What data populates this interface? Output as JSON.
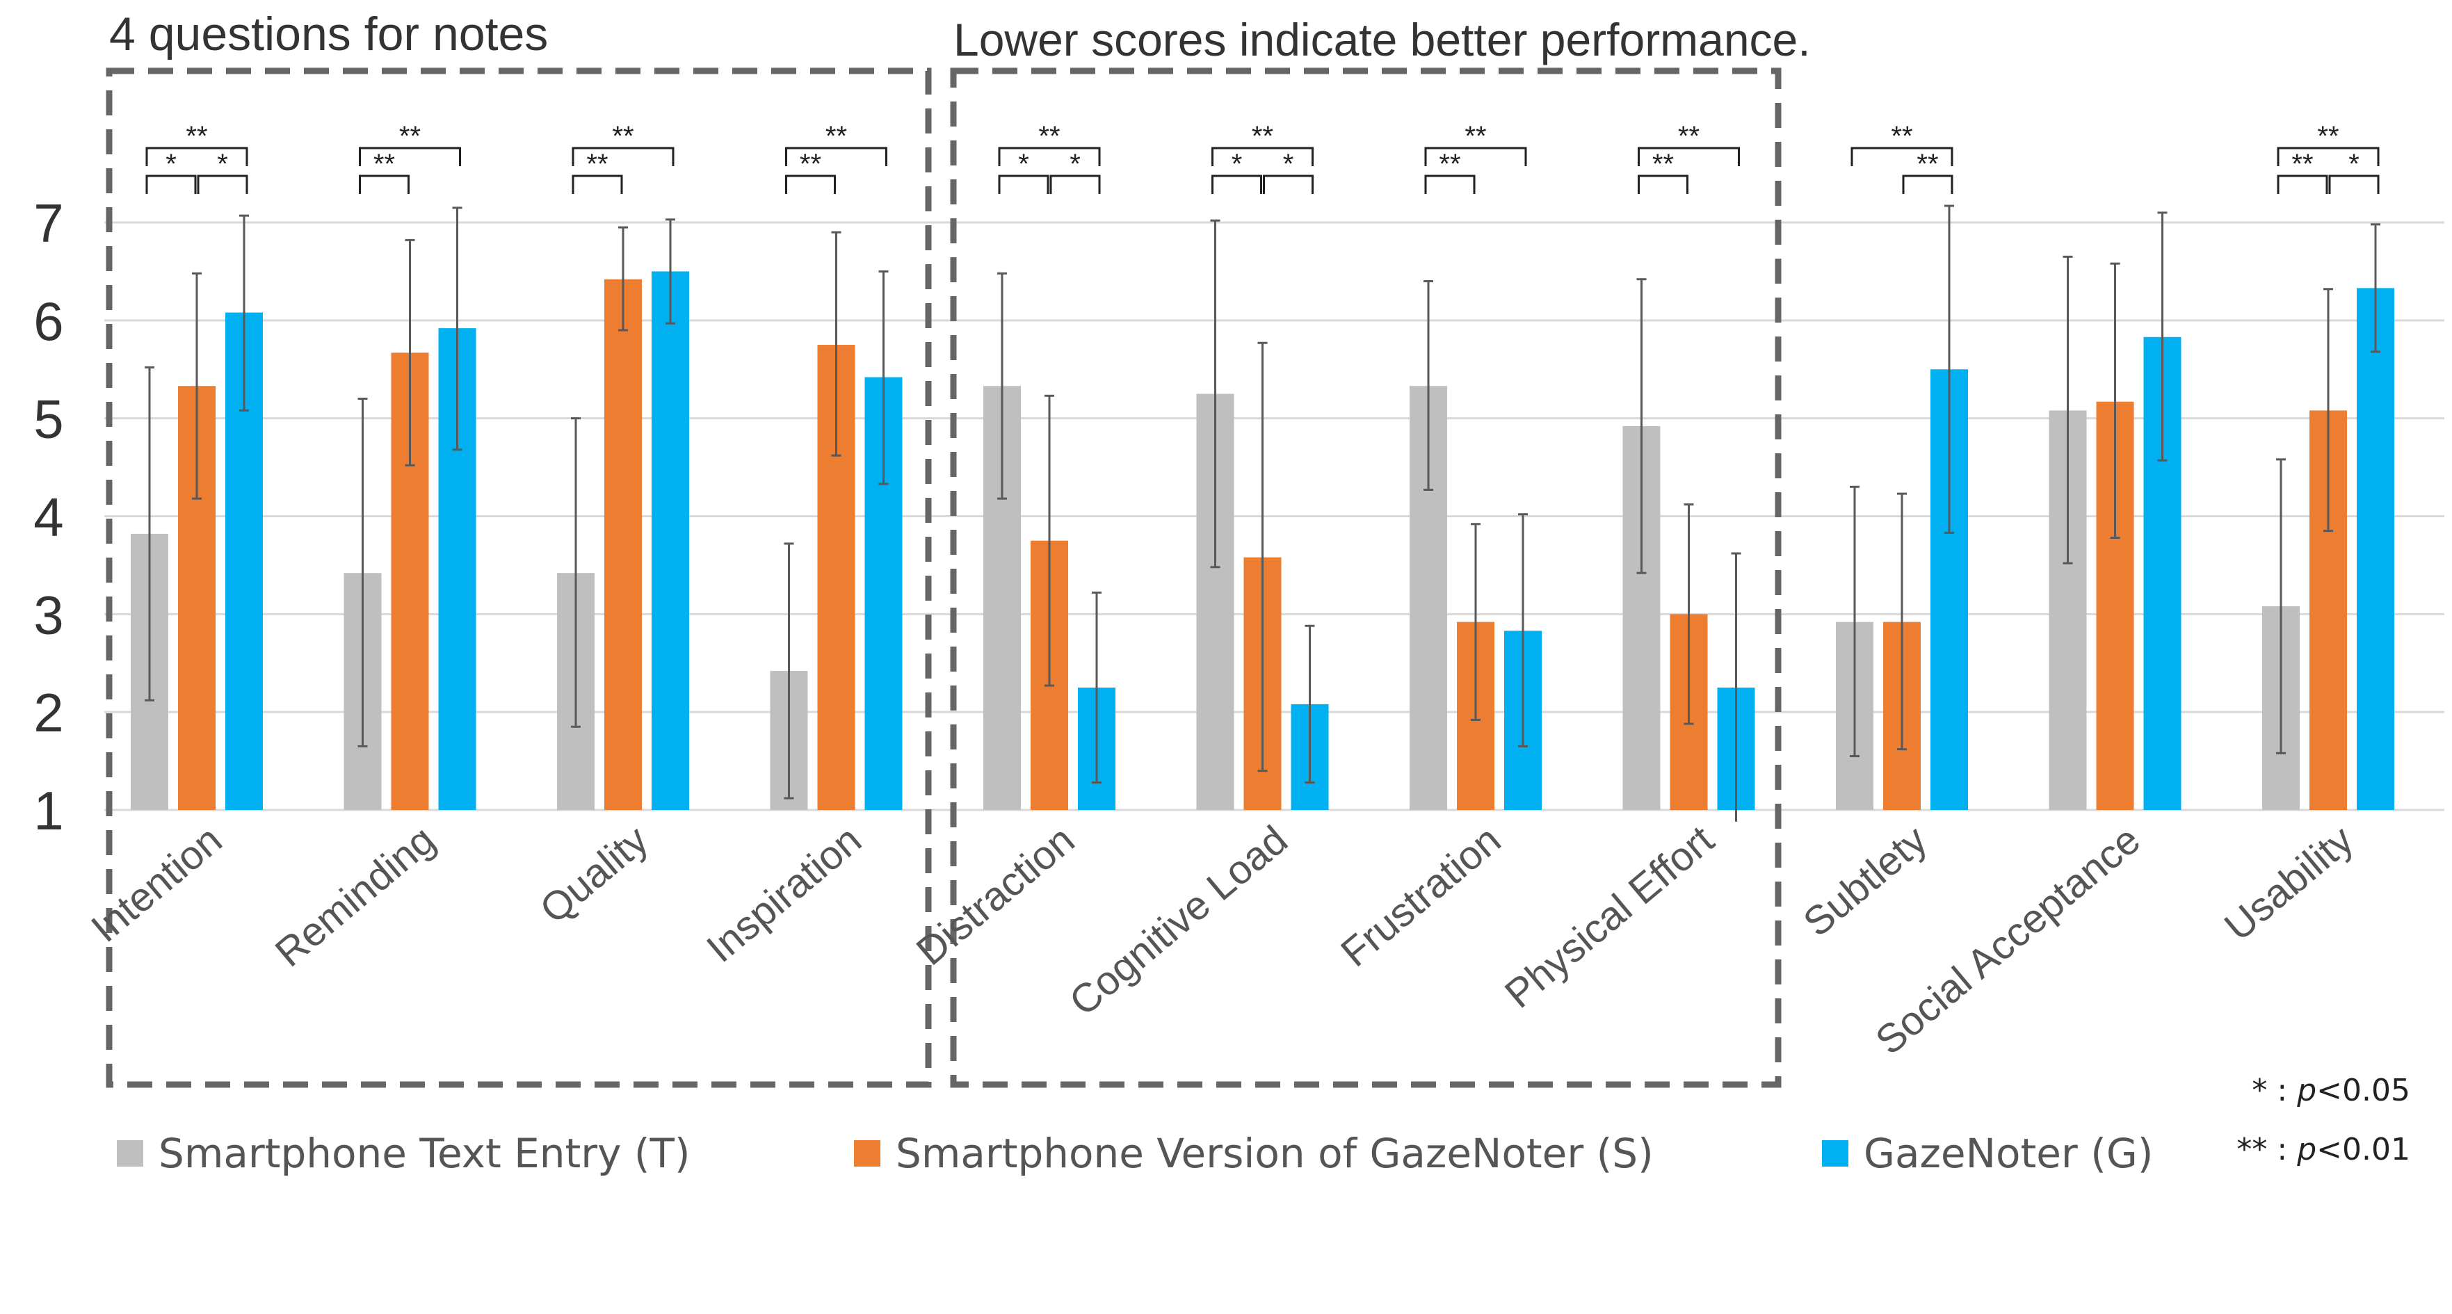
{
  "chart_data": {
    "type": "bar",
    "title": "",
    "xlabel": "",
    "ylabel": "",
    "ylim": [
      1,
      7
    ],
    "yticks": [
      1,
      2,
      3,
      4,
      5,
      6,
      7
    ],
    "grid": true,
    "categories": [
      "Intention",
      "Reminding",
      "Quality",
      "Inspiration",
      "Distraction",
      "Cognitive Load",
      "Frustration",
      "Physical Effort",
      "Subtlety",
      "Social Acceptance",
      "Usability"
    ],
    "series": [
      {
        "name": "Smartphone Text Entry (T)",
        "color": "#bfbfbf",
        "values": [
          3.82,
          3.42,
          3.42,
          2.42,
          5.33,
          5.25,
          5.33,
          4.92,
          2.92,
          5.08,
          3.08
        ],
        "err_low": [
          2.12,
          1.65,
          1.85,
          1.12,
          4.18,
          3.48,
          4.27,
          3.42,
          1.55,
          3.52,
          1.58
        ],
        "err_high": [
          5.52,
          5.2,
          5.0,
          3.72,
          6.48,
          7.02,
          6.4,
          6.42,
          4.3,
          6.65,
          4.58
        ]
      },
      {
        "name": "Smartphone Version of GazeNoter (S)",
        "color": "#ed7d31",
        "values": [
          5.33,
          5.67,
          6.42,
          5.75,
          3.75,
          3.58,
          2.92,
          3.0,
          2.92,
          5.17,
          5.08
        ],
        "err_low": [
          4.18,
          4.52,
          5.9,
          4.62,
          2.27,
          1.4,
          1.92,
          1.88,
          1.62,
          3.78,
          3.85
        ],
        "err_high": [
          6.48,
          6.82,
          6.95,
          6.9,
          5.23,
          5.77,
          3.92,
          4.12,
          4.23,
          6.58,
          6.32
        ]
      },
      {
        "name": "GazeNoter (G)",
        "color": "#00b0f0",
        "values": [
          6.08,
          5.92,
          6.5,
          5.42,
          2.25,
          2.08,
          2.83,
          2.25,
          5.5,
          5.83,
          6.33
        ],
        "err_low": [
          5.08,
          4.68,
          5.97,
          4.33,
          1.28,
          1.28,
          1.65,
          0.88,
          3.83,
          4.57,
          5.68
        ],
        "err_high": [
          7.07,
          7.15,
          7.03,
          6.5,
          3.22,
          2.88,
          4.02,
          3.62,
          7.17,
          7.1,
          6.98
        ]
      }
    ],
    "significance": [
      {
        "category": "Intention",
        "pairs": [
          {
            "from": 0,
            "to": 1,
            "label": "*"
          },
          {
            "from": 1,
            "to": 2,
            "label": "*"
          },
          {
            "from": 0,
            "to": 2,
            "label": "**"
          }
        ]
      },
      {
        "category": "Reminding",
        "pairs": [
          {
            "from": 0,
            "to": 1,
            "label": "**"
          },
          {
            "from": 0,
            "to": 2,
            "label": "**"
          }
        ]
      },
      {
        "category": "Quality",
        "pairs": [
          {
            "from": 0,
            "to": 1,
            "label": "**"
          },
          {
            "from": 0,
            "to": 2,
            "label": "**"
          }
        ]
      },
      {
        "category": "Inspiration",
        "pairs": [
          {
            "from": 0,
            "to": 1,
            "label": "**"
          },
          {
            "from": 0,
            "to": 2,
            "label": "**"
          }
        ]
      },
      {
        "category": "Distraction",
        "pairs": [
          {
            "from": 0,
            "to": 1,
            "label": "*"
          },
          {
            "from": 1,
            "to": 2,
            "label": "*"
          },
          {
            "from": 0,
            "to": 2,
            "label": "**"
          }
        ]
      },
      {
        "category": "Cognitive Load",
        "pairs": [
          {
            "from": 0,
            "to": 1,
            "label": "*"
          },
          {
            "from": 1,
            "to": 2,
            "label": "*"
          },
          {
            "from": 0,
            "to": 2,
            "label": "**"
          }
        ]
      },
      {
        "category": "Frustration",
        "pairs": [
          {
            "from": 0,
            "to": 1,
            "label": "**"
          },
          {
            "from": 0,
            "to": 2,
            "label": "**"
          }
        ]
      },
      {
        "category": "Physical Effort",
        "pairs": [
          {
            "from": 0,
            "to": 1,
            "label": "**"
          },
          {
            "from": 0,
            "to": 2,
            "label": "**"
          }
        ]
      },
      {
        "category": "Subtlety",
        "pairs": [
          {
            "from": 1,
            "to": 2,
            "label": "**"
          },
          {
            "from": 0,
            "to": 2,
            "label": "**"
          }
        ]
      },
      {
        "category": "Usability",
        "pairs": [
          {
            "from": 0,
            "to": 1,
            "label": "**"
          },
          {
            "from": 1,
            "to": 2,
            "label": "*"
          },
          {
            "from": 0,
            "to": 2,
            "label": "**"
          }
        ]
      }
    ],
    "annotations": {
      "group1_label": "4 questions for notes",
      "group2_label": "Lower scores indicate better performance.",
      "p_notes": [
        {
          "stars": "* : ",
          "p": "p",
          "rest": "<0.05"
        },
        {
          "stars": "** : ",
          "p": "p",
          "rest": "<0.01"
        }
      ]
    }
  }
}
